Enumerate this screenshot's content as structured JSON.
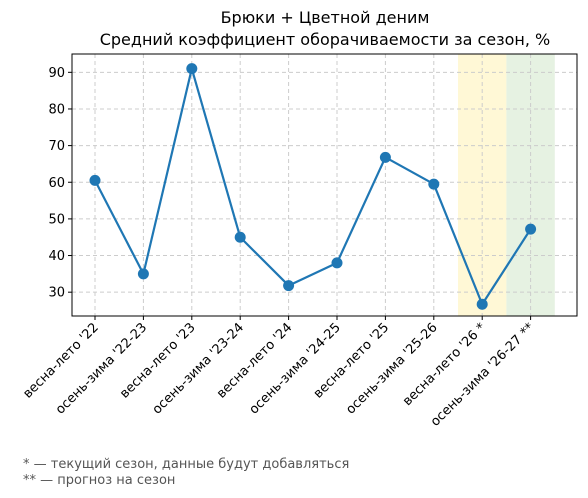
{
  "chart_data": {
    "type": "line",
    "title": "Брюки + Цветной деним",
    "subtitle": "Средний коэффициент оборачиваемости за сезон, %",
    "xlabel": "",
    "ylabel": "",
    "categories": [
      "весна-лето '22",
      "осень-зима '22-23",
      "весна-лето '23",
      "осень-зима '23-24",
      "весна-лето '24",
      "осень-зима '24-25",
      "весна-лето '25",
      "осень-зима '25-26",
      "весна-лето '26 *",
      "осень-зима '26-27 **"
    ],
    "series": [
      {
        "values": [
          60.5,
          35,
          91,
          45,
          31.8,
          38,
          66.8,
          59.5,
          26.7,
          47.2
        ]
      }
    ],
    "ylim": [
      23.5,
      95
    ],
    "yticks": [
      30,
      40,
      50,
      60,
      70,
      80,
      90
    ],
    "grid": true,
    "highlights": [
      {
        "category_index": 8,
        "color": "#fff8d6",
        "meaning": "current"
      },
      {
        "category_index": 9,
        "color": "#e6f2e2",
        "meaning": "forecast"
      }
    ],
    "line_color": "#1f77b4"
  },
  "footnotes": {
    "current": "* — текущий сезон, данные будут добавляться",
    "forecast": "** — прогноз на сезон"
  }
}
